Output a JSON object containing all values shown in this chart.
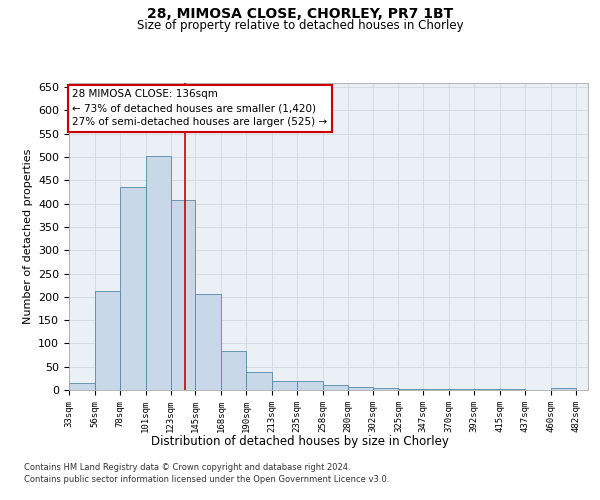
{
  "title1": "28, MIMOSA CLOSE, CHORLEY, PR7 1BT",
  "title2": "Size of property relative to detached houses in Chorley",
  "xlabel": "Distribution of detached houses by size in Chorley",
  "ylabel": "Number of detached properties",
  "footnote1": "Contains HM Land Registry data © Crown copyright and database right 2024.",
  "footnote2": "Contains public sector information licensed under the Open Government Licence v3.0.",
  "annotation_title": "28 MIMOSA CLOSE: 136sqm",
  "annotation_line1": "← 73% of detached houses are smaller (1,420)",
  "annotation_line2": "27% of semi-detached houses are larger (525) →",
  "property_size": 136,
  "bar_left_edges": [
    33,
    56,
    78,
    101,
    123,
    145,
    168,
    190,
    213,
    235,
    258,
    280,
    302,
    325,
    347,
    370,
    392,
    415,
    437,
    460
  ],
  "bar_widths": [
    23,
    22,
    23,
    22,
    22,
    23,
    22,
    23,
    22,
    23,
    22,
    22,
    23,
    22,
    23,
    22,
    23,
    22,
    23,
    22
  ],
  "bar_heights": [
    15,
    213,
    435,
    502,
    408,
    207,
    84,
    38,
    19,
    19,
    11,
    6,
    4,
    3,
    3,
    3,
    3,
    3,
    1,
    5
  ],
  "bar_color": "#c8d8e8",
  "bar_edge_color": "#5588aa",
  "vline_color": "#cc0000",
  "annotation_box_color": "#ffffff",
  "annotation_border_color": "#cc0000",
  "grid_color": "#d0d8e0",
  "ylim": [
    0,
    660
  ],
  "xlim": [
    33,
    493
  ],
  "xtick_labels": [
    "33sqm",
    "56sqm",
    "78sqm",
    "101sqm",
    "123sqm",
    "145sqm",
    "168sqm",
    "190sqm",
    "213sqm",
    "235sqm",
    "258sqm",
    "280sqm",
    "302sqm",
    "325sqm",
    "347sqm",
    "370sqm",
    "392sqm",
    "415sqm",
    "437sqm",
    "460sqm",
    "482sqm"
  ],
  "xtick_positions": [
    33,
    56,
    78,
    101,
    123,
    145,
    168,
    190,
    213,
    235,
    258,
    280,
    302,
    325,
    347,
    370,
    392,
    415,
    437,
    460,
    482
  ],
  "ytick_positions": [
    0,
    50,
    100,
    150,
    200,
    250,
    300,
    350,
    400,
    450,
    500,
    550,
    600,
    650
  ],
  "background_color": "#eaf0f6"
}
